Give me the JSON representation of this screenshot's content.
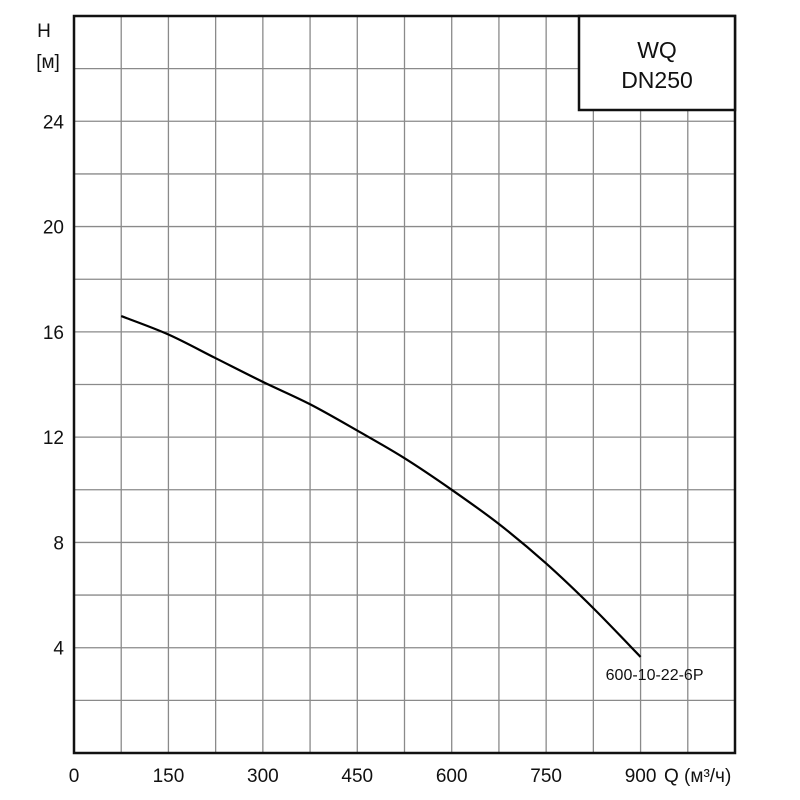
{
  "chart_data": {
    "type": "line",
    "title_box": {
      "line1": "WQ",
      "line2": "DN250"
    },
    "ylabel": {
      "line1": "H",
      "line2": "[м]"
    },
    "xlabel": "Q (м³/ч)",
    "xlim": [
      0,
      1050
    ],
    "ylim": [
      0,
      28
    ],
    "x_grid_step": 75,
    "y_grid_step": 2,
    "grid": true,
    "x_ticks": [
      {
        "value": 0,
        "label": "0"
      },
      {
        "value": 150,
        "label": "150"
      },
      {
        "value": 300,
        "label": "300"
      },
      {
        "value": 450,
        "label": "450"
      },
      {
        "value": 600,
        "label": "600"
      },
      {
        "value": 750,
        "label": "750"
      },
      {
        "value": 900,
        "label": "900"
      }
    ],
    "y_ticks": [
      {
        "value": 4,
        "label": "4"
      },
      {
        "value": 8,
        "label": "8"
      },
      {
        "value": 12,
        "label": "12"
      },
      {
        "value": 16,
        "label": "16"
      },
      {
        "value": 20,
        "label": "20"
      },
      {
        "value": 24,
        "label": "24"
      }
    ],
    "series": [
      {
        "name": "600-10-22-6P",
        "x": [
          75,
          150,
          225,
          300,
          375,
          450,
          525,
          600,
          675,
          750,
          825,
          900
        ],
        "y": [
          16.6,
          15.9,
          15.0,
          14.1,
          13.25,
          12.25,
          11.2,
          10.0,
          8.7,
          7.2,
          5.5,
          3.65
        ]
      }
    ],
    "colors": {
      "grid": "#8a8a8a",
      "frame": "#111111",
      "curve": "#000000"
    }
  }
}
